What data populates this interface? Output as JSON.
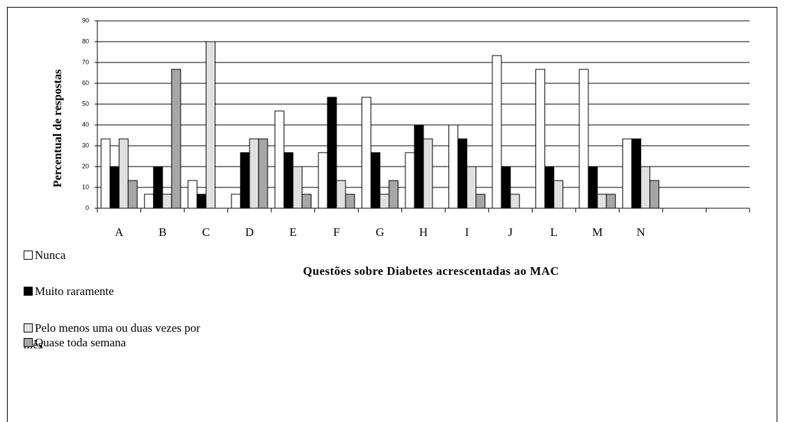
{
  "chart_data": {
    "type": "bar",
    "ylabel": "Percentual de respostas",
    "xlabel": "Questões sobre Diabetes acrescentadas ao MAC",
    "categories": [
      "A",
      "B",
      "C",
      "D",
      "E",
      "F",
      "G",
      "H",
      "I",
      "J",
      "L",
      "M",
      "N",
      null,
      null
    ],
    "series": [
      {
        "name": "Nunca",
        "color": "#ffffff",
        "values": [
          33.3,
          6.7,
          13.3,
          6.7,
          46.7,
          26.7,
          53.3,
          26.7,
          40,
          73.3,
          66.7,
          66.7,
          33.3,
          null,
          null
        ]
      },
      {
        "name": "Muito raramente",
        "color": "#000000",
        "values": [
          20,
          20,
          6.7,
          26.7,
          26.7,
          53.3,
          26.7,
          40,
          33.3,
          20,
          20,
          20,
          33.3,
          null,
          null
        ]
      },
      {
        "name": "Pelo menos uma ou duas vezes por mês",
        "color": "#e0e0e0",
        "values": [
          33.3,
          6.7,
          80,
          33.3,
          20,
          13.3,
          6.7,
          33.3,
          20,
          6.7,
          13.3,
          6.7,
          20,
          null,
          null
        ]
      },
      {
        "name": "Quase toda semana",
        "color": "#a6a6a6",
        "values": [
          13.3,
          66.7,
          0,
          33.3,
          6.7,
          6.7,
          13.3,
          0,
          6.7,
          0,
          0,
          6.7,
          13.3,
          null,
          null
        ]
      }
    ],
    "ylim": [
      0,
      90
    ],
    "yticks": [
      0,
      10,
      20,
      30,
      40,
      50,
      60,
      70,
      80,
      90
    ],
    "grid": true
  }
}
